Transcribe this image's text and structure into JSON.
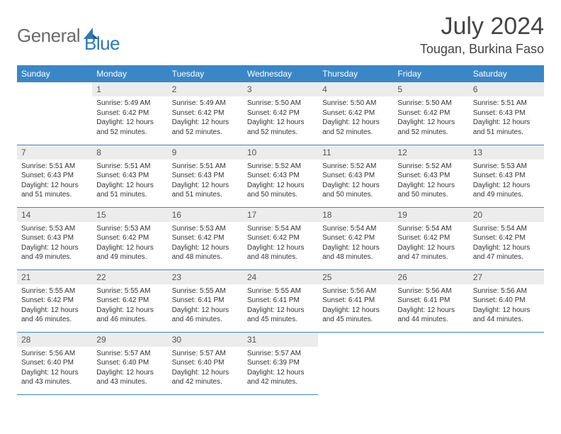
{
  "logo": {
    "word1": "General",
    "word2": "Blue"
  },
  "title": {
    "month": "July 2024",
    "location": "Tougan, Burkina Faso"
  },
  "colors": {
    "header_bg": "#3a87c8",
    "daynum_bg": "#ececec",
    "border": "#3a87c8",
    "logo_gray": "#6b6b6b",
    "logo_blue": "#2a7ab8"
  },
  "day_names": [
    "Sunday",
    "Monday",
    "Tuesday",
    "Wednesday",
    "Thursday",
    "Friday",
    "Saturday"
  ],
  "weeks": [
    [
      null,
      {
        "n": "1",
        "sr": "5:49 AM",
        "ss": "6:42 PM",
        "dl": "12 hours and 52 minutes."
      },
      {
        "n": "2",
        "sr": "5:49 AM",
        "ss": "6:42 PM",
        "dl": "12 hours and 52 minutes."
      },
      {
        "n": "3",
        "sr": "5:50 AM",
        "ss": "6:42 PM",
        "dl": "12 hours and 52 minutes."
      },
      {
        "n": "4",
        "sr": "5:50 AM",
        "ss": "6:42 PM",
        "dl": "12 hours and 52 minutes."
      },
      {
        "n": "5",
        "sr": "5:50 AM",
        "ss": "6:42 PM",
        "dl": "12 hours and 52 minutes."
      },
      {
        "n": "6",
        "sr": "5:51 AM",
        "ss": "6:43 PM",
        "dl": "12 hours and 51 minutes."
      }
    ],
    [
      {
        "n": "7",
        "sr": "5:51 AM",
        "ss": "6:43 PM",
        "dl": "12 hours and 51 minutes."
      },
      {
        "n": "8",
        "sr": "5:51 AM",
        "ss": "6:43 PM",
        "dl": "12 hours and 51 minutes."
      },
      {
        "n": "9",
        "sr": "5:51 AM",
        "ss": "6:43 PM",
        "dl": "12 hours and 51 minutes."
      },
      {
        "n": "10",
        "sr": "5:52 AM",
        "ss": "6:43 PM",
        "dl": "12 hours and 50 minutes."
      },
      {
        "n": "11",
        "sr": "5:52 AM",
        "ss": "6:43 PM",
        "dl": "12 hours and 50 minutes."
      },
      {
        "n": "12",
        "sr": "5:52 AM",
        "ss": "6:43 PM",
        "dl": "12 hours and 50 minutes."
      },
      {
        "n": "13",
        "sr": "5:53 AM",
        "ss": "6:43 PM",
        "dl": "12 hours and 49 minutes."
      }
    ],
    [
      {
        "n": "14",
        "sr": "5:53 AM",
        "ss": "6:43 PM",
        "dl": "12 hours and 49 minutes."
      },
      {
        "n": "15",
        "sr": "5:53 AM",
        "ss": "6:42 PM",
        "dl": "12 hours and 49 minutes."
      },
      {
        "n": "16",
        "sr": "5:53 AM",
        "ss": "6:42 PM",
        "dl": "12 hours and 48 minutes."
      },
      {
        "n": "17",
        "sr": "5:54 AM",
        "ss": "6:42 PM",
        "dl": "12 hours and 48 minutes."
      },
      {
        "n": "18",
        "sr": "5:54 AM",
        "ss": "6:42 PM",
        "dl": "12 hours and 48 minutes."
      },
      {
        "n": "19",
        "sr": "5:54 AM",
        "ss": "6:42 PM",
        "dl": "12 hours and 47 minutes."
      },
      {
        "n": "20",
        "sr": "5:54 AM",
        "ss": "6:42 PM",
        "dl": "12 hours and 47 minutes."
      }
    ],
    [
      {
        "n": "21",
        "sr": "5:55 AM",
        "ss": "6:42 PM",
        "dl": "12 hours and 46 minutes."
      },
      {
        "n": "22",
        "sr": "5:55 AM",
        "ss": "6:42 PM",
        "dl": "12 hours and 46 minutes."
      },
      {
        "n": "23",
        "sr": "5:55 AM",
        "ss": "6:41 PM",
        "dl": "12 hours and 46 minutes."
      },
      {
        "n": "24",
        "sr": "5:55 AM",
        "ss": "6:41 PM",
        "dl": "12 hours and 45 minutes."
      },
      {
        "n": "25",
        "sr": "5:56 AM",
        "ss": "6:41 PM",
        "dl": "12 hours and 45 minutes."
      },
      {
        "n": "26",
        "sr": "5:56 AM",
        "ss": "6:41 PM",
        "dl": "12 hours and 44 minutes."
      },
      {
        "n": "27",
        "sr": "5:56 AM",
        "ss": "6:40 PM",
        "dl": "12 hours and 44 minutes."
      }
    ],
    [
      {
        "n": "28",
        "sr": "5:56 AM",
        "ss": "6:40 PM",
        "dl": "12 hours and 43 minutes."
      },
      {
        "n": "29",
        "sr": "5:57 AM",
        "ss": "6:40 PM",
        "dl": "12 hours and 43 minutes."
      },
      {
        "n": "30",
        "sr": "5:57 AM",
        "ss": "6:40 PM",
        "dl": "12 hours and 42 minutes."
      },
      {
        "n": "31",
        "sr": "5:57 AM",
        "ss": "6:39 PM",
        "dl": "12 hours and 42 minutes."
      },
      null,
      null,
      null
    ]
  ],
  "labels": {
    "sunrise": "Sunrise:",
    "sunset": "Sunset:",
    "daylight": "Daylight:"
  }
}
